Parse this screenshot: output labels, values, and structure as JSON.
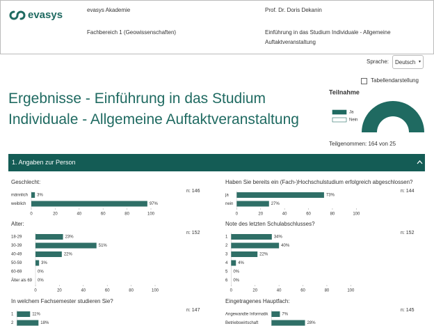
{
  "header": {
    "logo": "evasys",
    "organization": "evasys Akademie",
    "person": "Prof. Dr. Doris Dekanin",
    "department": "Fachbereich 1 (Geowissenschaften)",
    "course": "Einführung in das Studium Individuale - Allgemeine Auftaktveranstaltung"
  },
  "language": {
    "label": "Sprache:",
    "value": "Deutsch"
  },
  "table_toggle": "Tabellendarstellung",
  "title": "Ergebnisse - Einführung in das Studium Individuale - Allgemeine Auftaktveranstaltung",
  "participation": {
    "title": "Teilnahme",
    "legend": [
      {
        "name": "Ja",
        "color": "#1f6a61"
      },
      {
        "name": "Nein",
        "color": "#ffffff"
      }
    ],
    "summary": "Teilgenommen: 164 von 25"
  },
  "section": "1. Angaben zur Person",
  "charts": [
    {
      "type": "bar",
      "title": "Geschlecht:",
      "n": "n: 146",
      "categories": [
        "männlich",
        "weiblich"
      ],
      "values": [
        3,
        97
      ],
      "value_labels": [
        "3%",
        "97%"
      ],
      "xlim": [
        0,
        100
      ],
      "xticks": [
        0,
        20,
        40,
        60,
        80,
        100
      ],
      "color": "#2f6f67"
    },
    {
      "type": "bar",
      "title": "Haben Sie bereits ein (Fach-)Hochschulstudium erfolgreich abgeschlossen?",
      "n": "n: 144",
      "categories": [
        "ja",
        "nein"
      ],
      "values": [
        73,
        27
      ],
      "value_labels": [
        "73%",
        "27%"
      ],
      "xlim": [
        0,
        100
      ],
      "xticks": [
        0,
        20,
        40,
        60,
        80,
        100
      ],
      "color": "#2f6f67"
    },
    {
      "type": "bar",
      "title": "Alter:",
      "n": "n: 152",
      "categories": [
        "18-29",
        "30-39",
        "40-49",
        "50-59",
        "60-69",
        "Älter als 69"
      ],
      "values": [
        23,
        51,
        22,
        3,
        0,
        0
      ],
      "value_labels": [
        "23%",
        "51%",
        "22%",
        "3%",
        "0%",
        "0%"
      ],
      "xlim": [
        0,
        100
      ],
      "xticks": [
        0,
        20,
        40,
        60,
        80,
        100
      ],
      "color": "#2f6f67"
    },
    {
      "type": "bar",
      "title": "Note des letzten Schulabschlusses?",
      "n": "n: 152",
      "categories": [
        "1",
        "2",
        "3",
        "4",
        "5",
        "6"
      ],
      "values": [
        34,
        40,
        22,
        4,
        0,
        0
      ],
      "value_labels": [
        "34%",
        "40%",
        "22%",
        "4%",
        "0%",
        "0%"
      ],
      "xlim": [
        0,
        100
      ],
      "xticks": [
        0,
        20,
        40,
        60,
        80,
        100
      ],
      "color": "#2f6f67"
    },
    {
      "type": "bar",
      "title": "In welchem Fachsemester studieren Sie?",
      "n": "n: 147",
      "categories": [
        "1",
        "2"
      ],
      "values": [
        11,
        18
      ],
      "value_labels": [
        "11%",
        "18%"
      ],
      "xlim": [
        0,
        100
      ],
      "color": "#2f6f67"
    },
    {
      "type": "bar",
      "title": "Eingetragenes Hauptfach:",
      "n": "n: 145",
      "categories": [
        "Angewandte Informatik",
        "Betriebswirtschaft"
      ],
      "values": [
        7,
        28
      ],
      "value_labels": [
        "7%",
        "28%"
      ],
      "xlim": [
        0,
        100
      ],
      "color": "#2f6f67"
    }
  ]
}
